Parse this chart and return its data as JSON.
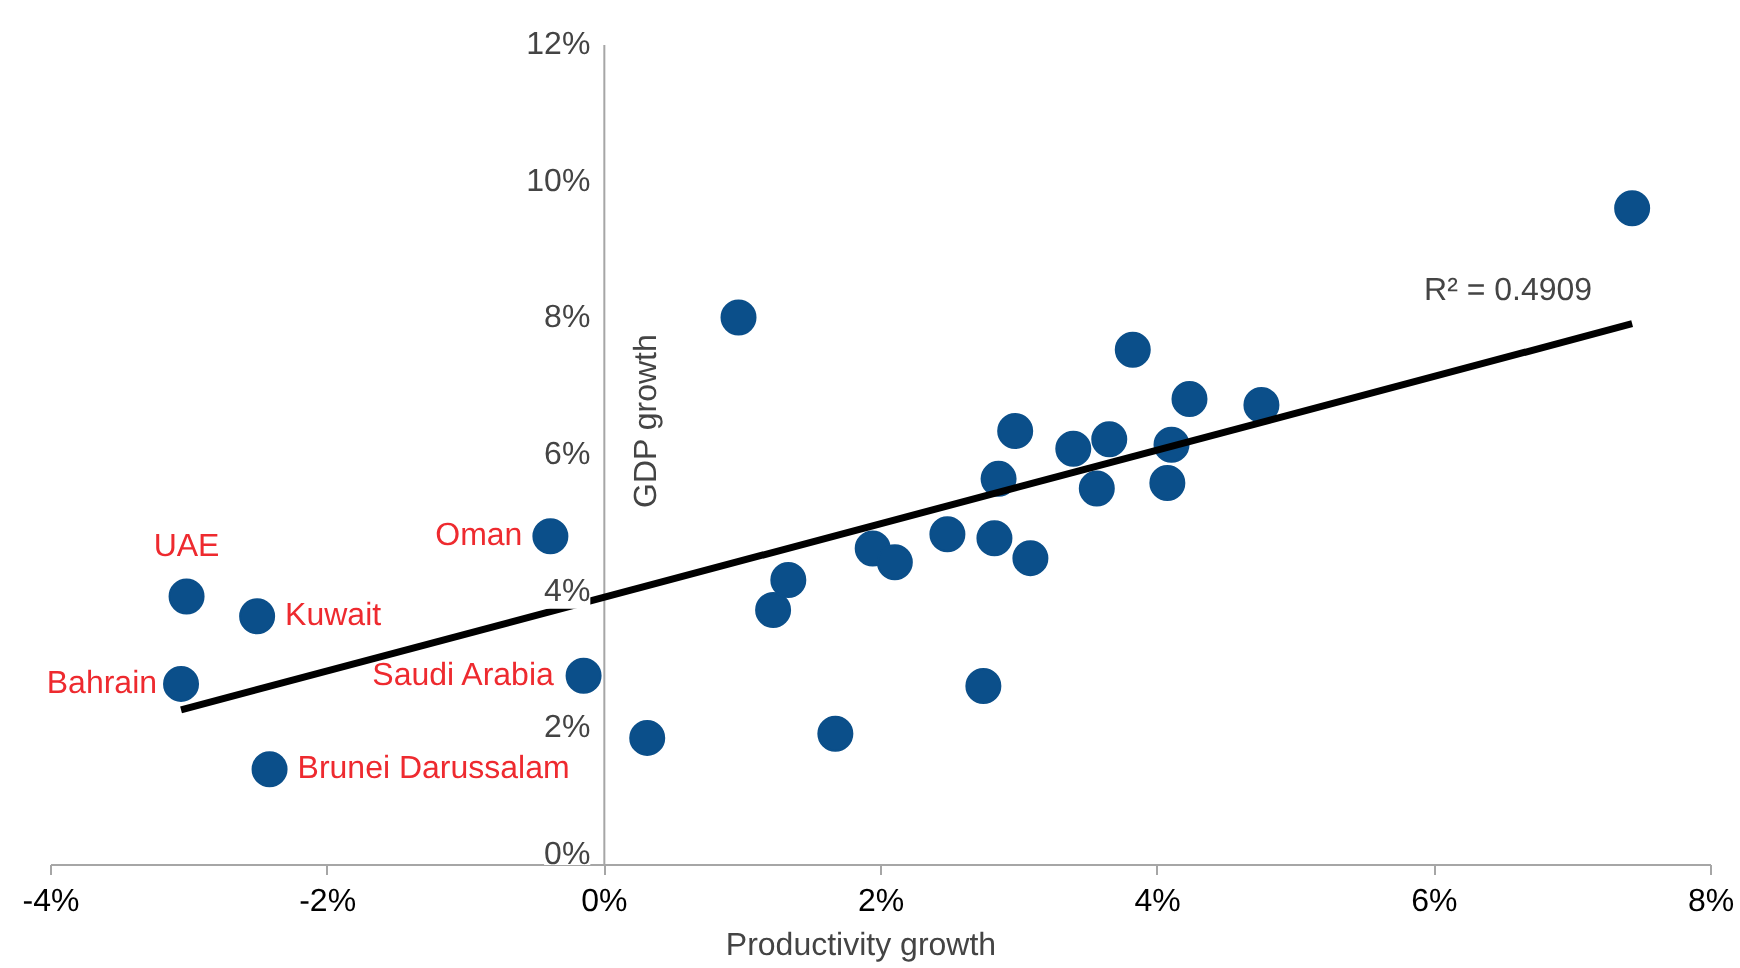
{
  "chart_data": {
    "type": "scatter",
    "xlabel": "Productivity growth",
    "ylabel": "GDP growth",
    "xlim": [
      -4,
      8
    ],
    "ylim": [
      0,
      12
    ],
    "xticks": [
      {
        "value": -4,
        "label": "-4%"
      },
      {
        "value": -2,
        "label": "-2%"
      },
      {
        "value": 0,
        "label": "0%"
      },
      {
        "value": 2,
        "label": "2%"
      },
      {
        "value": 4,
        "label": "4%"
      },
      {
        "value": 6,
        "label": "6%"
      },
      {
        "value": 8,
        "label": "8%"
      }
    ],
    "yticks": [
      {
        "value": 0,
        "label": "0%"
      },
      {
        "value": 2,
        "label": "2%"
      },
      {
        "value": 4,
        "label": "4%"
      },
      {
        "value": 6,
        "label": "6%"
      },
      {
        "value": 8,
        "label": "8%"
      },
      {
        "value": 10,
        "label": "10%"
      },
      {
        "value": 12,
        "label": "12%"
      }
    ],
    "grid": false,
    "series": [
      {
        "marker": "circle",
        "color": "#0b4f8a",
        "x": [
          -3.02,
          -2.51,
          -3.06,
          -2.42,
          -0.39,
          -0.15,
          0.31,
          0.97,
          1.22,
          1.33,
          1.67,
          1.94,
          2.1,
          2.48,
          2.74,
          2.82,
          2.85,
          2.97,
          3.08,
          3.39,
          3.56,
          3.65,
          3.82,
          4.07,
          4.1,
          4.23,
          4.75,
          7.43
        ],
        "values": [
          3.93,
          3.64,
          2.65,
          1.4,
          4.81,
          2.77,
          1.86,
          8.01,
          3.73,
          4.17,
          1.92,
          4.63,
          4.43,
          4.84,
          2.62,
          4.78,
          5.65,
          6.35,
          4.49,
          6.09,
          5.51,
          6.23,
          7.54,
          5.59,
          6.15,
          6.82,
          6.73,
          9.61
        ]
      },
      {
        "type": "line",
        "color": "#000000",
        "x": [
          -3.06,
          7.43
        ],
        "values": [
          2.27,
          7.92
        ]
      }
    ],
    "annotations": [
      {
        "text": "UAE",
        "x": -3.02,
        "y": 3.93
      },
      {
        "text": "Kuwait",
        "x": -2.51,
        "y": 3.64
      },
      {
        "text": "Bahrain",
        "x": -3.06,
        "y": 2.65
      },
      {
        "text": "Brunei Darussalam",
        "x": -2.42,
        "y": 1.4
      },
      {
        "text": "Oman",
        "x": -0.39,
        "y": 4.81
      },
      {
        "text": "Saudi Arabia",
        "x": -0.15,
        "y": 2.77
      },
      "R² = 0.4909"
    ]
  }
}
